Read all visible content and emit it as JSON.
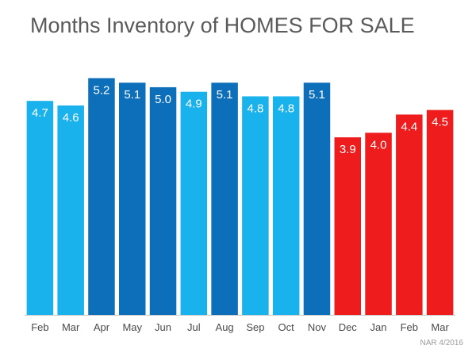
{
  "chart_data": {
    "type": "bar",
    "title": "Months Inventory of HOMES FOR SALE",
    "categories": [
      "Feb",
      "Mar",
      "Apr",
      "May",
      "Jun",
      "Jul",
      "Aug",
      "Sep",
      "Oct",
      "Nov",
      "Dec",
      "Jan",
      "Feb",
      "Mar"
    ],
    "values": [
      4.7,
      4.6,
      5.2,
      5.1,
      5.0,
      4.9,
      5.1,
      4.8,
      4.8,
      5.1,
      3.9,
      4.0,
      4.4,
      4.5
    ],
    "data_labels": [
      "4.7",
      "4.6",
      "5.2",
      "5.1",
      "5.0",
      "4.9",
      "5.1",
      "4.8",
      "4.8",
      "5.1",
      "3.9",
      "4.0",
      "4.4",
      "4.5"
    ],
    "bar_colors": [
      "#1ab2ec",
      "#1ab2ec",
      "#0d6fba",
      "#0d6fba",
      "#0d6fba",
      "#1ab2ec",
      "#0d6fba",
      "#1ab2ec",
      "#1ab2ec",
      "#0d6fba",
      "#ee1c1c",
      "#ee1c1c",
      "#ee1c1c",
      "#ee1c1c"
    ],
    "ylim": [
      0,
      5.4
    ],
    "xlabel": "",
    "ylabel": "",
    "grid": false,
    "legend": "none",
    "source_note": "NAR 4/2016"
  }
}
